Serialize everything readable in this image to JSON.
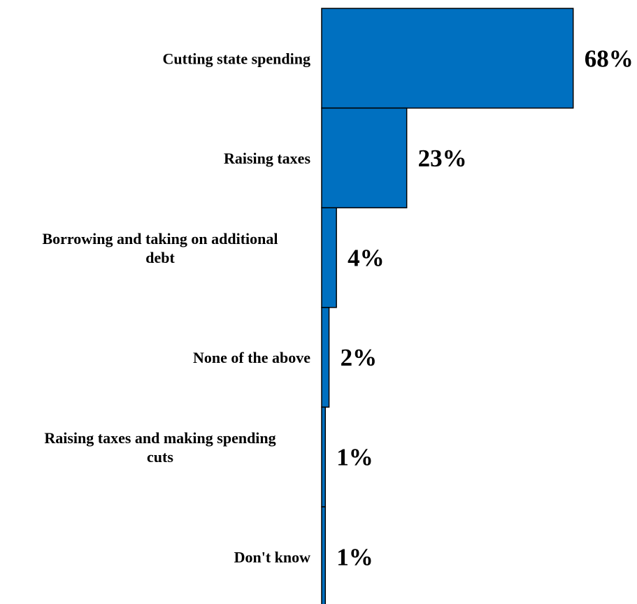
{
  "chart_data": {
    "type": "bar",
    "orientation": "horizontal",
    "categories": [
      [
        "Cutting state spending"
      ],
      [
        "Raising taxes"
      ],
      [
        "Borrowing and taking on additional",
        "debt"
      ],
      [
        "None of the above"
      ],
      [
        "Raising taxes and making spending",
        "cuts"
      ],
      [
        "Don't know"
      ]
    ],
    "values": [
      68,
      23,
      4,
      2,
      1,
      1
    ],
    "value_labels": [
      "68%",
      "23%",
      "4%",
      "2%",
      "1%",
      "1%"
    ],
    "bar_color": "#0070c0",
    "xlim": [
      0,
      100
    ],
    "grid": false,
    "legend": "none"
  }
}
